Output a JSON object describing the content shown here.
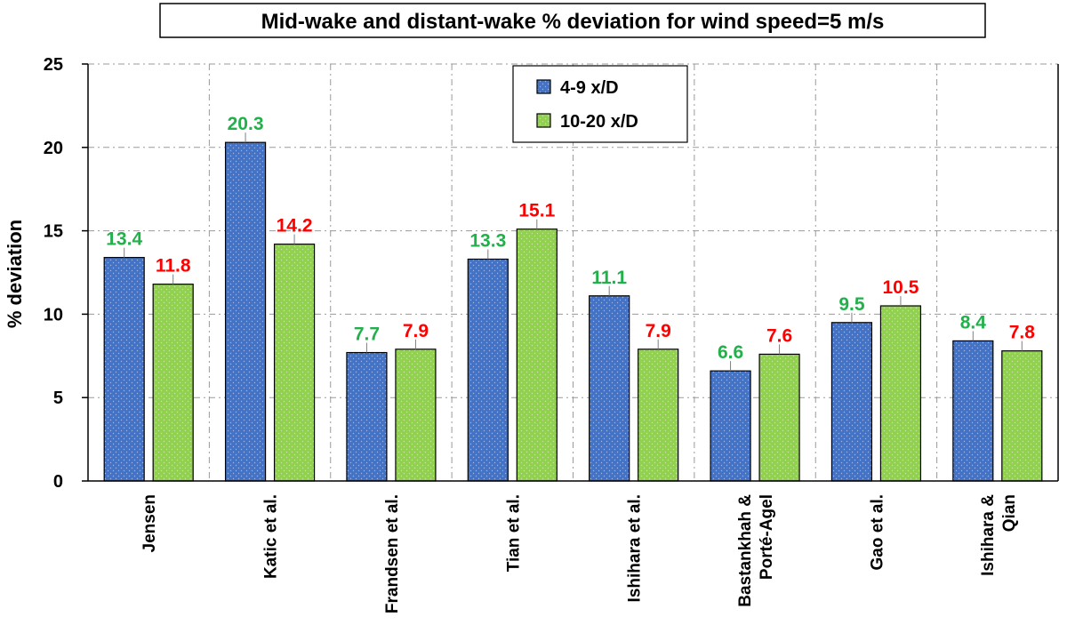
{
  "chart_data": {
    "type": "bar",
    "title": "Mid-wake and distant-wake % deviation for wind speed=5 m/s",
    "xlabel": "",
    "ylabel": "% deviation",
    "ylim": [
      0,
      25
    ],
    "yticks": [
      0,
      5,
      10,
      15,
      20,
      25
    ],
    "grid": true,
    "legend_position": "top-center",
    "categories": [
      [
        "Jensen"
      ],
      [
        "Katic et al."
      ],
      [
        "Frandsen et al."
      ],
      [
        "Tian et al."
      ],
      [
        "Ishihara et al."
      ],
      [
        "Bastankhah &",
        "Porté-Agel"
      ],
      [
        "Gao et al."
      ],
      [
        "Ishihara &",
        "Qian"
      ]
    ],
    "series": [
      {
        "name": "4-9 x/D",
        "color": "#4472C4",
        "label_color": "#22B04A",
        "values": [
          13.4,
          20.3,
          7.7,
          13.3,
          11.1,
          6.6,
          9.5,
          8.4
        ]
      },
      {
        "name": "10-20 x/D",
        "color": "#92D050",
        "label_color": "#FF0000",
        "values": [
          11.8,
          14.2,
          7.9,
          15.1,
          7.9,
          7.6,
          10.5,
          7.8
        ]
      }
    ]
  }
}
